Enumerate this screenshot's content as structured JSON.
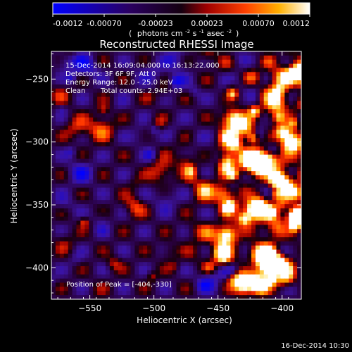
{
  "chart_data": {
    "type": "heatmap",
    "title": "Reconstructed RHESSI Image",
    "xlabel": "Heliocentric X (arcsec)",
    "ylabel": "Heliocentric Y (arcsec)",
    "xlim": [
      -580,
      -385
    ],
    "ylim": [
      -425,
      -228
    ],
    "xticks": [
      -550,
      -500,
      -450,
      -400
    ],
    "yticks": [
      -250,
      -300,
      -350,
      -400
    ],
    "colorbar": {
      "ticks": [
        "-0.0012",
        "-0.00070",
        "-0.00023",
        "0.00023",
        "0.00070",
        "0.0012"
      ],
      "range": [
        -0.0012,
        0.0012
      ],
      "unit_text": "photons cm",
      "unit_sup1": "-2",
      "unit_mid1": " s",
      "unit_sup2": "-1",
      "unit_mid2": " asec",
      "unit_sup3": "-2",
      "colors": [
        "#0000ff",
        "#1a0050",
        "#000000",
        "#ff0000",
        "#ff9b00",
        "#ffffff"
      ]
    },
    "annotations": {
      "time": "15-Dec-2014 16:09:04.000 to 16:13:22.000",
      "detectors": "Detectors: 3F 6F 9F, Att 0",
      "energy": "Energy Range: 12.0 - 25.0 keV",
      "clean": "Clean",
      "counts": "Total counts: 2.94E+03",
      "peak": "Position of Peak = [-404,-330]"
    },
    "peak_position": [
      -404,
      -330
    ],
    "footer_date": "16-Dec-2014 10:30"
  }
}
